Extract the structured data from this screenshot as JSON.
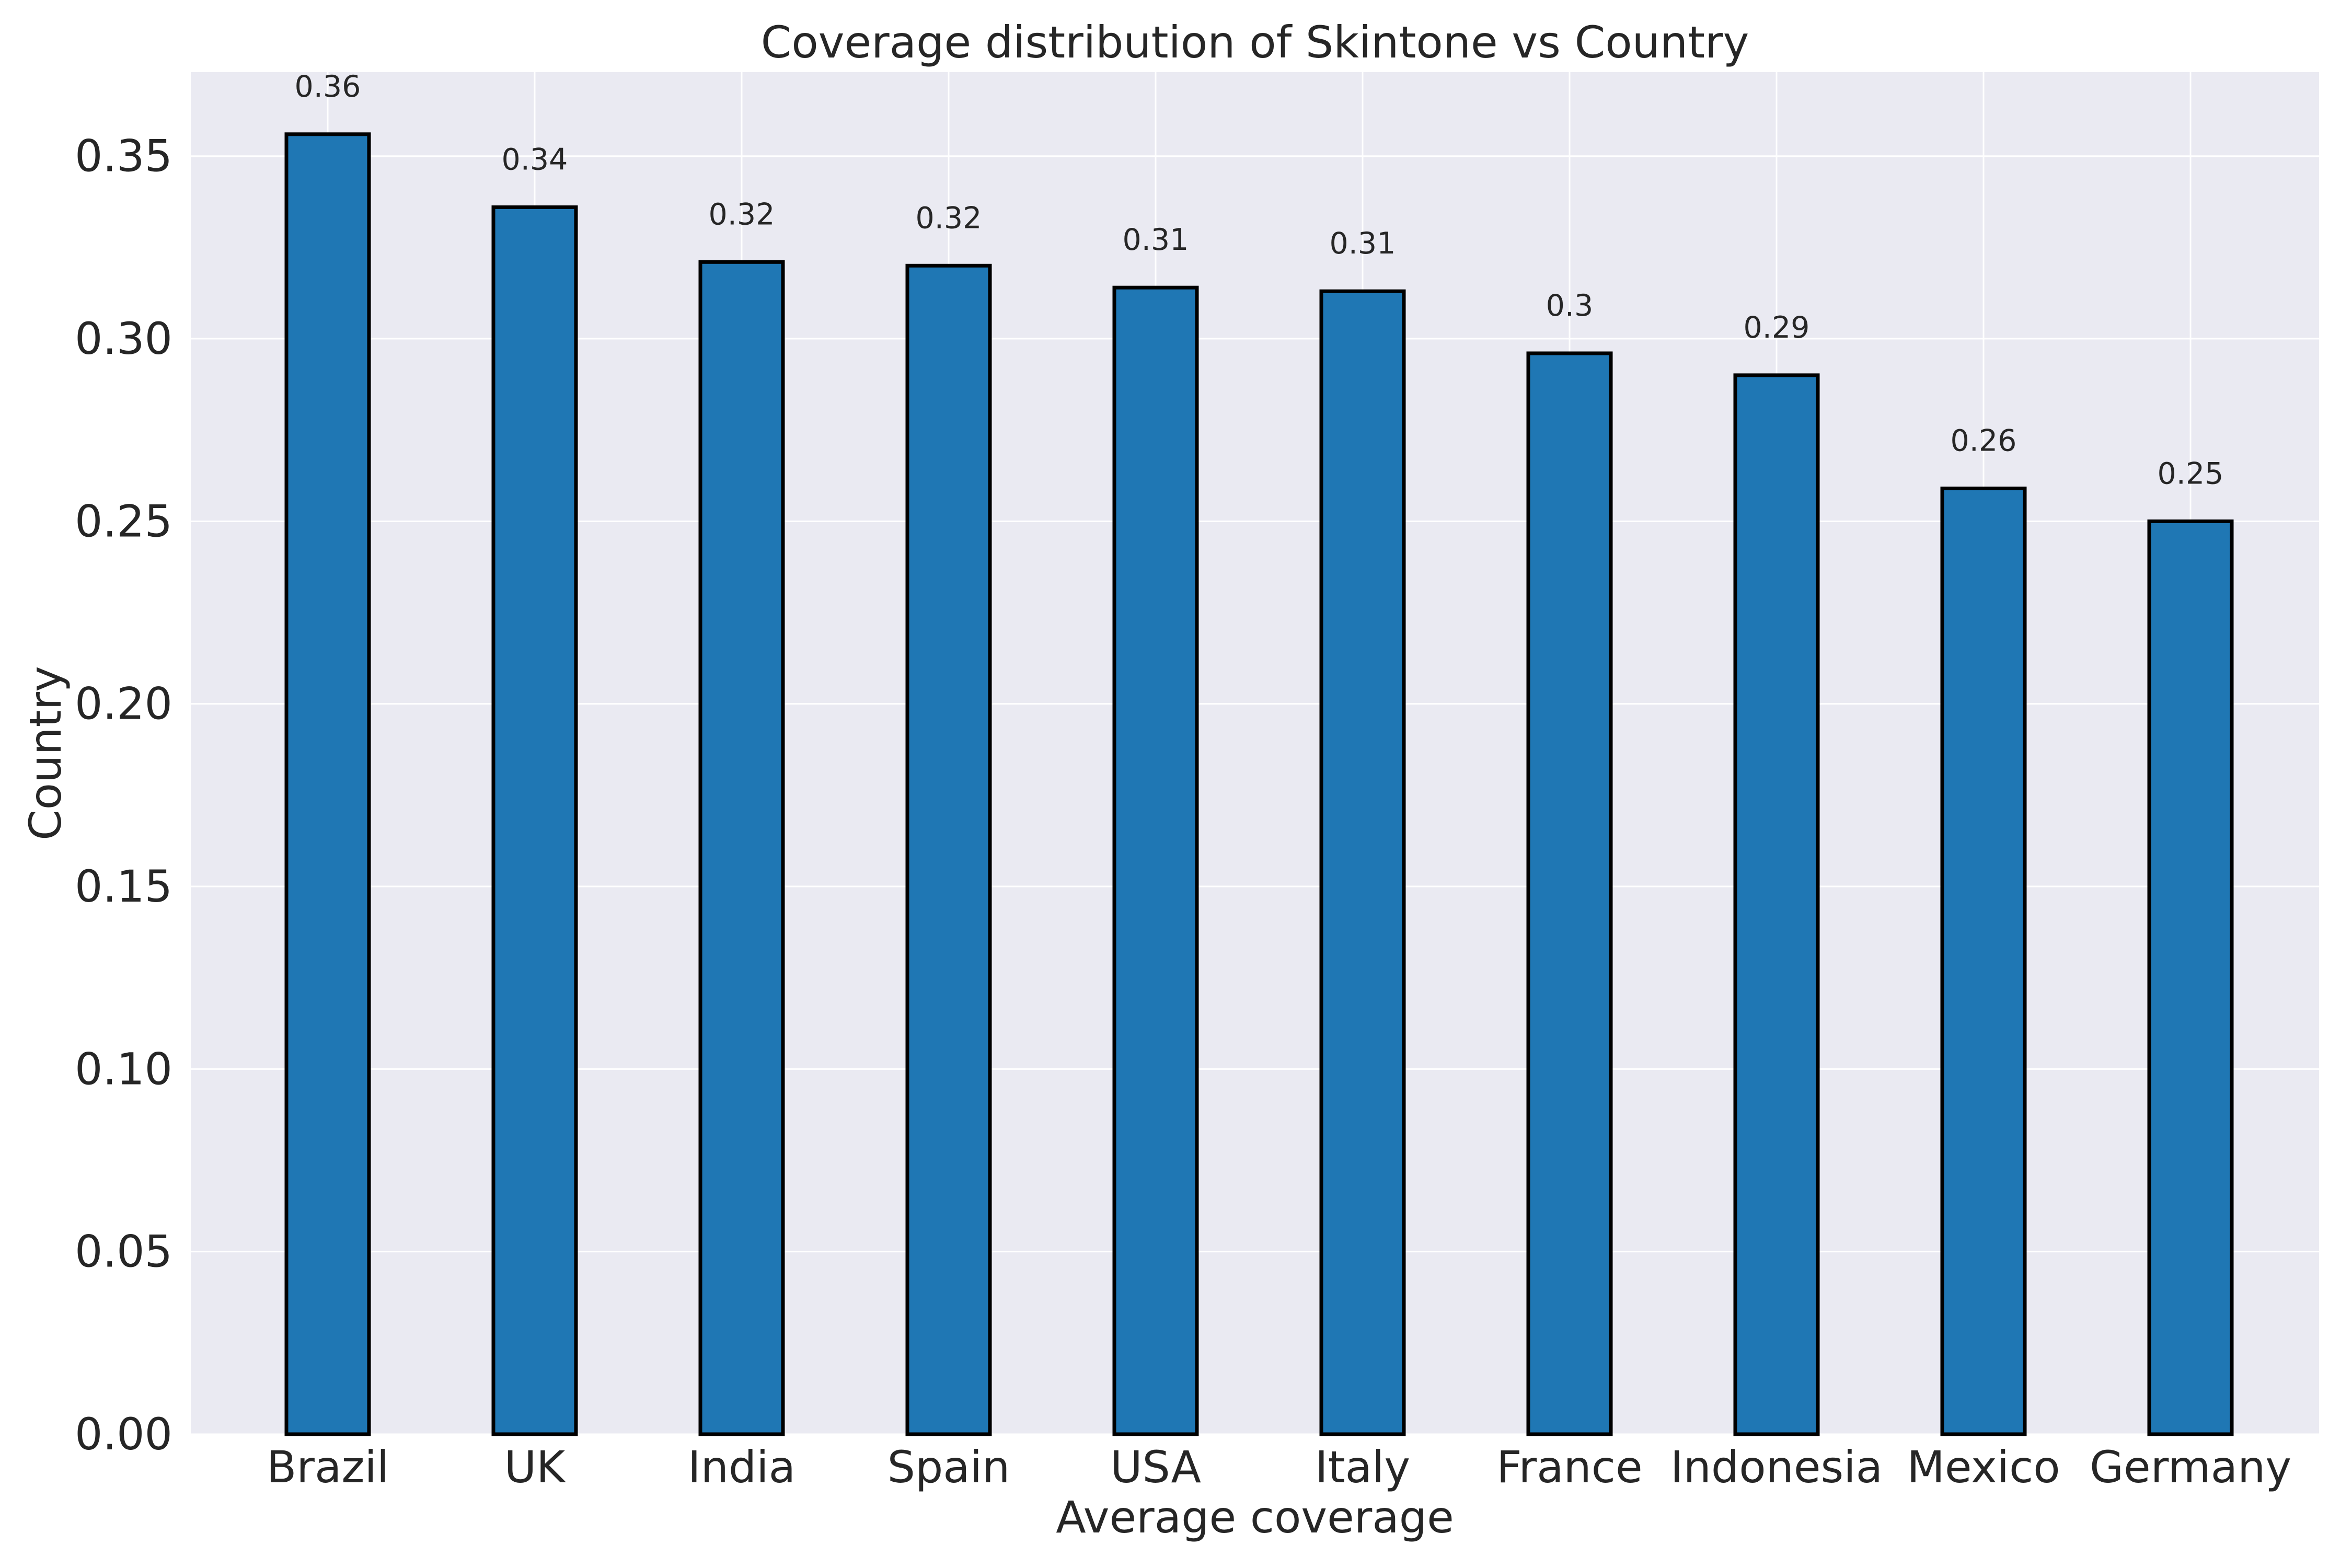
{
  "chart_data": {
    "type": "bar",
    "title": "Coverage distribution of Skintone vs Country",
    "xlabel": "Average coverage",
    "ylabel": "Country",
    "categories": [
      "Brazil",
      "UK",
      "India",
      "Spain",
      "USA",
      "Italy",
      "France",
      "Indonesia",
      "Mexico",
      "Germany"
    ],
    "values": [
      0.356,
      0.336,
      0.321,
      0.32,
      0.314,
      0.313,
      0.296,
      0.29,
      0.259,
      0.25
    ],
    "data_labels": [
      "0.36",
      "0.34",
      "0.32",
      "0.32",
      "0.31",
      "0.31",
      "0.3",
      "0.29",
      "0.26",
      "0.25"
    ],
    "ylim": [
      0,
      0.373
    ],
    "yticks": [
      0.0,
      0.05,
      0.1,
      0.15,
      0.2,
      0.25,
      0.3,
      0.35
    ],
    "ytick_labels": [
      "0.00",
      "0.05",
      "0.10",
      "0.15",
      "0.20",
      "0.25",
      "0.30",
      "0.35"
    ],
    "grid": true,
    "legend": "none",
    "colors": {
      "bar_fill": "#1f77b4",
      "bar_edge": "#000000",
      "plot_background": "#eaeaf2",
      "grid": "#ffffff",
      "text": "#262626"
    }
  }
}
